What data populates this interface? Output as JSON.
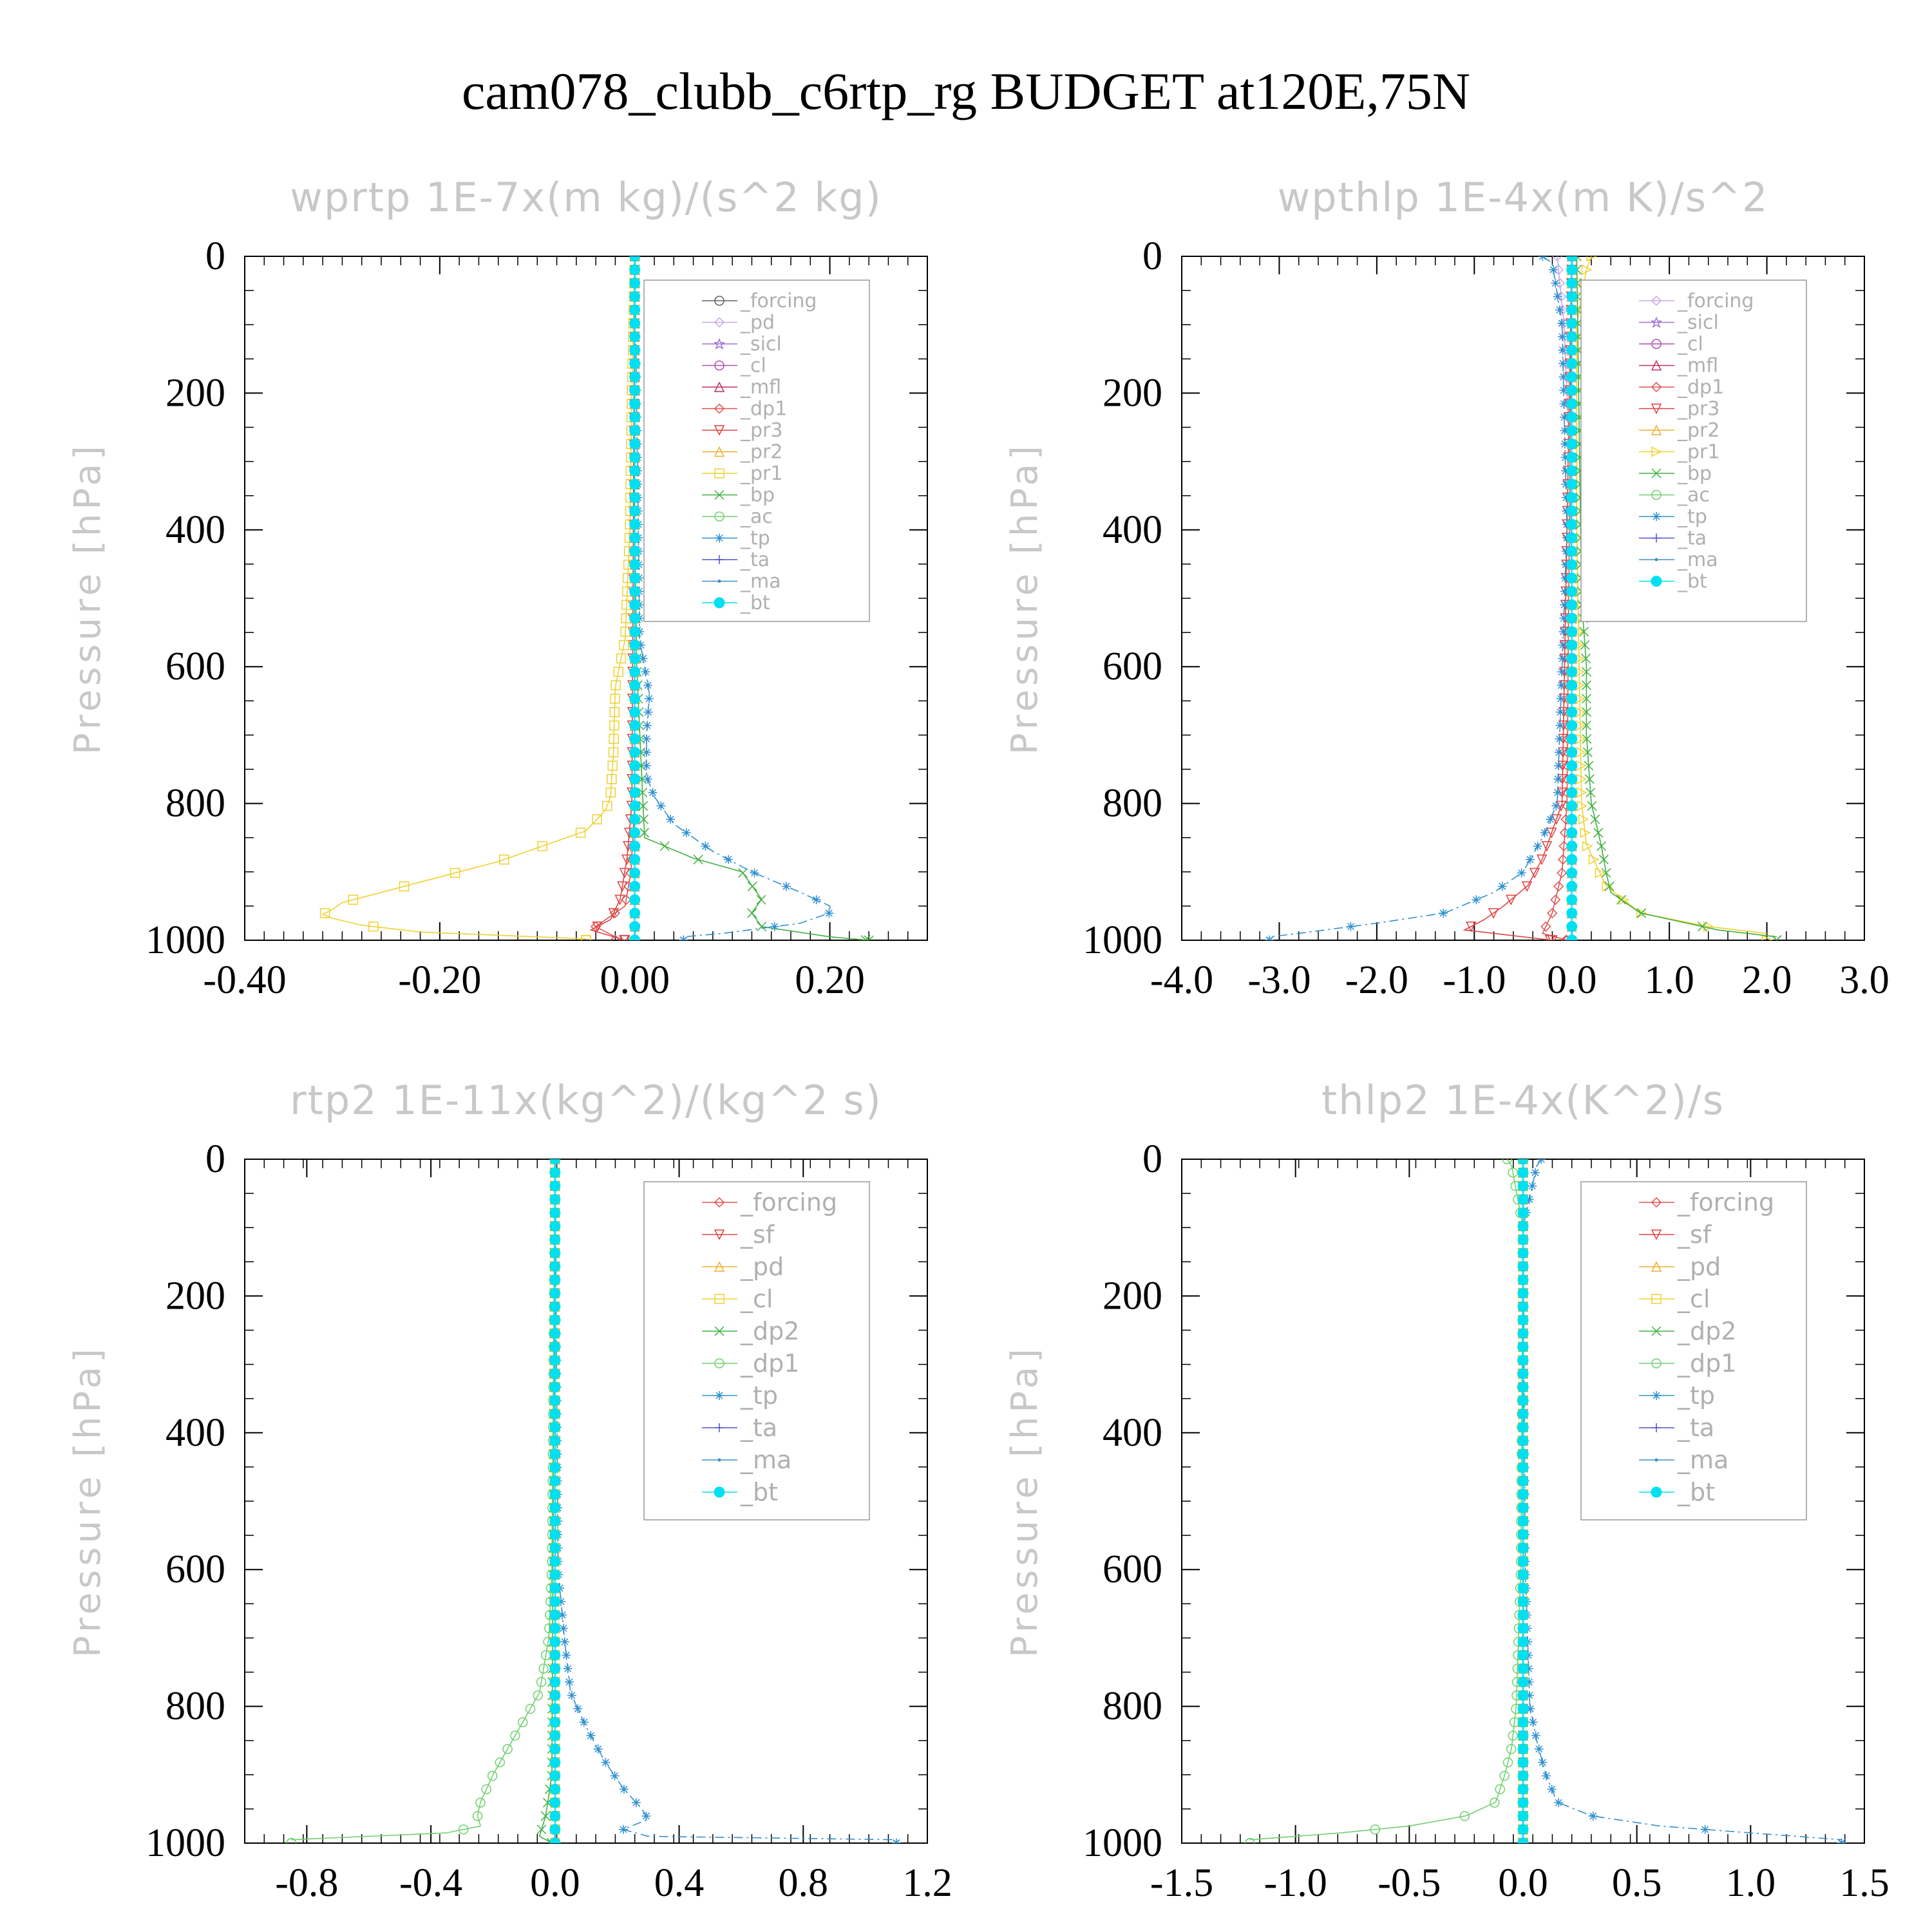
{
  "figure": {
    "title": "cam078_clubb_c6rtp_rg  BUDGET at120E,75N"
  },
  "chart_data": [
    {
      "type": "line",
      "title": "wprtp   1E-7x(m kg)/(s^2 kg)",
      "ylabel": "Pressure [hPa]",
      "xlim": [
        -0.4,
        0.3
      ],
      "ylim": [
        1000,
        0
      ],
      "xticks": [
        "-0.40",
        "-0.20",
        "0.00",
        "0.20"
      ],
      "xtick_values": [
        -0.4,
        -0.2,
        0.0,
        0.2
      ],
      "yticks": [
        "0",
        "200",
        "400",
        "600",
        "800",
        "1000"
      ],
      "legend_position": "top-right",
      "series": [
        {
          "name": "_forcing",
          "color": "#606060",
          "marker": "circle",
          "p": [
            0,
            1000
          ],
          "x": [
            0,
            0
          ]
        },
        {
          "name": "_pd",
          "color": "#c8a8e8",
          "marker": "diamond",
          "p": [
            0,
            1000
          ],
          "x": [
            0,
            0
          ]
        },
        {
          "name": "_sicl",
          "color": "#a070d0",
          "marker": "star",
          "p": [
            0,
            1000
          ],
          "x": [
            0,
            0
          ]
        },
        {
          "name": "_cl",
          "color": "#b050b0",
          "marker": "circle",
          "p": [
            0,
            1000
          ],
          "x": [
            0,
            0
          ]
        },
        {
          "name": "_mfl",
          "color": "#c03060",
          "marker": "triangle",
          "p": [
            0,
            1000
          ],
          "x": [
            0,
            0
          ]
        },
        {
          "name": "_dp1",
          "color": "#e05050",
          "marker": "diamond",
          "p": [
            0,
            800,
            900,
            950,
            980,
            995
          ],
          "x": [
            0,
            0,
            -0.004,
            -0.01,
            -0.04,
            -0.02
          ]
        },
        {
          "name": "_pr3",
          "color": "#e04040",
          "marker": "triangle-down",
          "p": [
            0,
            800,
            880,
            940,
            970,
            985,
            1000
          ],
          "x": [
            0,
            -0.003,
            -0.008,
            -0.015,
            -0.025,
            -0.045,
            -0.01
          ]
        },
        {
          "name": "_pr2",
          "color": "#f0b030",
          "marker": "triangle",
          "p": [
            0,
            1000
          ],
          "x": [
            0,
            0
          ]
        },
        {
          "name": "_pr1",
          "color": "#f0d030",
          "marker": "square",
          "p": [
            0,
            200,
            400,
            560,
            630,
            730,
            790,
            810,
            840,
            865,
            885,
            900,
            915,
            930,
            945,
            955,
            962,
            968,
            978,
            988,
            998
          ],
          "x": [
            0,
            -0.003,
            -0.005,
            -0.01,
            -0.02,
            -0.022,
            -0.025,
            -0.03,
            -0.05,
            -0.1,
            -0.14,
            -0.18,
            -0.22,
            -0.26,
            -0.3,
            -0.31,
            -0.32,
            -0.31,
            -0.28,
            -0.22,
            -0.05
          ]
        },
        {
          "name": "_bp",
          "color": "#40b040",
          "marker": "x",
          "p": [
            0,
            400,
            600,
            850,
            880,
            900,
            920,
            940,
            960,
            980,
            995,
            1000
          ],
          "x": [
            0,
            0,
            0.002,
            0.01,
            0.06,
            0.11,
            0.12,
            0.13,
            0.12,
            0.13,
            0.2,
            0.24
          ]
        },
        {
          "name": "_ac",
          "color": "#70d070",
          "marker": "circle",
          "p": [
            0,
            1000
          ],
          "x": [
            0,
            0
          ]
        },
        {
          "name": "_tp",
          "color": "#3090d0",
          "marker": "asterisk",
          "p": [
            0,
            560,
            600,
            640,
            700,
            760,
            790,
            830,
            870,
            900,
            930,
            950,
            960,
            975,
            990,
            995
          ],
          "x": [
            0,
            0.005,
            0.01,
            0.015,
            0.012,
            0.012,
            0.02,
            0.04,
            0.08,
            0.12,
            0.17,
            0.2,
            0.2,
            0.17,
            0.09,
            0.05
          ]
        },
        {
          "name": "_ta",
          "color": "#5050d0",
          "marker": "plus",
          "p": [
            0,
            1000
          ],
          "x": [
            0,
            0
          ]
        },
        {
          "name": "_ma",
          "color": "#4090c0",
          "marker": "dot",
          "p": [
            0,
            1000
          ],
          "x": [
            0,
            0
          ]
        },
        {
          "name": "_bt",
          "color": "#00e0f0",
          "marker": "filled-circle",
          "p": [
            0,
            1000
          ],
          "x": [
            0,
            0
          ]
        }
      ]
    },
    {
      "type": "line",
      "title": "wpthlp   1E-4x(m K)/s^2",
      "ylabel": "Pressure [hPa]",
      "xlim": [
        -4.0,
        3.0
      ],
      "ylim": [
        1000,
        0
      ],
      "xticks": [
        "-4.0",
        "-3.0",
        "-2.0",
        "-1.0",
        "0.0",
        "1.0",
        "2.0",
        "3.0"
      ],
      "xtick_values": [
        -4,
        -3,
        -2,
        -1,
        0,
        1,
        2,
        3
      ],
      "yticks": [
        "0",
        "200",
        "400",
        "600",
        "800",
        "1000"
      ],
      "legend_position": "top-right",
      "series": [
        {
          "name": "_forcing",
          "color": "#c8a8e8",
          "marker": "diamond",
          "p": [
            0,
            100,
            200,
            300,
            500,
            1000
          ],
          "x": [
            -0.15,
            -0.08,
            -0.05,
            -0.02,
            0,
            0
          ]
        },
        {
          "name": "_sicl",
          "color": "#a070d0",
          "marker": "star",
          "p": [
            0,
            1000
          ],
          "x": [
            0,
            0
          ]
        },
        {
          "name": "_cl",
          "color": "#b050b0",
          "marker": "circle",
          "p": [
            0,
            1000
          ],
          "x": [
            0,
            0
          ]
        },
        {
          "name": "_mfl",
          "color": "#c03060",
          "marker": "triangle",
          "p": [
            0,
            1000
          ],
          "x": [
            0,
            0
          ]
        },
        {
          "name": "_dp1",
          "color": "#e05050",
          "marker": "diamond",
          "p": [
            0,
            800,
            900,
            960,
            990,
            1000
          ],
          "x": [
            0,
            -0.05,
            -0.1,
            -0.2,
            -0.3,
            -0.05
          ]
        },
        {
          "name": "_pr3",
          "color": "#e04040",
          "marker": "triangle-down",
          "p": [
            0,
            800,
            840,
            880,
            920,
            950,
            970,
            985,
            1000
          ],
          "x": [
            0,
            -0.1,
            -0.2,
            -0.3,
            -0.45,
            -0.7,
            -0.9,
            -1.1,
            -0.2
          ]
        },
        {
          "name": "_pr2",
          "color": "#f0b030",
          "marker": "triangle",
          "p": [
            0,
            1000
          ],
          "x": [
            0,
            0
          ]
        },
        {
          "name": "_pr1",
          "color": "#f0d030",
          "marker": "triangle-right",
          "p": [
            0,
            20,
            100,
            400,
            800,
            860,
            920,
            960,
            980,
            990
          ],
          "x": [
            0.2,
            0.15,
            0.05,
            0.05,
            0.1,
            0.15,
            0.35,
            0.7,
            1.4,
            2.0
          ]
        },
        {
          "name": "_bp",
          "color": "#40b040",
          "marker": "x",
          "p": [
            0,
            500,
            600,
            700,
            800,
            860,
            900,
            930,
            960,
            985,
            995
          ],
          "x": [
            0.05,
            0.1,
            0.15,
            0.15,
            0.2,
            0.3,
            0.35,
            0.4,
            0.7,
            1.5,
            2.1
          ]
        },
        {
          "name": "_ac",
          "color": "#70d070",
          "marker": "circle",
          "p": [
            0,
            1000
          ],
          "x": [
            0,
            0
          ]
        },
        {
          "name": "_tp",
          "color": "#3090d0",
          "marker": "asterisk",
          "p": [
            0,
            10,
            100,
            400,
            800,
            850,
            900,
            930,
            960,
            975,
            990,
            995
          ],
          "x": [
            -0.3,
            -0.2,
            -0.1,
            -0.05,
            -0.15,
            -0.3,
            -0.5,
            -0.8,
            -1.3,
            -2.0,
            -2.8,
            -3.1
          ]
        },
        {
          "name": "_ta",
          "color": "#5050d0",
          "marker": "plus",
          "p": [
            0,
            1000
          ],
          "x": [
            0,
            0
          ]
        },
        {
          "name": "_ma",
          "color": "#4090c0",
          "marker": "dot",
          "p": [
            0,
            1000
          ],
          "x": [
            0,
            0
          ]
        },
        {
          "name": "_bt",
          "color": "#00e0f0",
          "marker": "filled-circle",
          "p": [
            0,
            1000
          ],
          "x": [
            0,
            0
          ]
        }
      ]
    },
    {
      "type": "line",
      "title": "rtp2   1E-11x(kg^2)/(kg^2 s)",
      "ylabel": "Pressure [hPa]",
      "xlim": [
        -1.0,
        1.2
      ],
      "ylim": [
        1000,
        0
      ],
      "xticks": [
        "-0.8",
        "-0.4",
        "0.0",
        "0.4",
        "0.8",
        "1.2"
      ],
      "xtick_values": [
        -0.8,
        -0.4,
        0.0,
        0.4,
        0.8,
        1.2
      ],
      "yticks": [
        "0",
        "200",
        "400",
        "600",
        "800",
        "1000"
      ],
      "legend_position": "top-right",
      "series": [
        {
          "name": "_forcing",
          "color": "#e05050",
          "marker": "diamond",
          "p": [
            0,
            1000
          ],
          "x": [
            0,
            0
          ]
        },
        {
          "name": "_sf",
          "color": "#e04040",
          "marker": "triangle-down",
          "p": [
            0,
            1000
          ],
          "x": [
            0,
            0
          ]
        },
        {
          "name": "_pd",
          "color": "#f0b030",
          "marker": "triangle",
          "p": [
            0,
            1000
          ],
          "x": [
            0,
            0
          ]
        },
        {
          "name": "_cl",
          "color": "#f0d030",
          "marker": "square",
          "p": [
            0,
            1000
          ],
          "x": [
            0,
            0
          ]
        },
        {
          "name": "_dp2",
          "color": "#40b040",
          "marker": "x",
          "p": [
            0,
            900,
            960,
            990,
            1000
          ],
          "x": [
            0,
            -0.01,
            -0.03,
            -0.05,
            -0.01
          ]
        },
        {
          "name": "_dp1",
          "color": "#70d070",
          "marker": "circle",
          "p": [
            0,
            600,
            700,
            780,
            820,
            860,
            900,
            940,
            960,
            975,
            985,
            995
          ],
          "x": [
            0,
            -0.01,
            -0.02,
            -0.05,
            -0.1,
            -0.15,
            -0.2,
            -0.24,
            -0.25,
            -0.24,
            -0.35,
            -0.85
          ]
        },
        {
          "name": "_tp",
          "color": "#3090d0",
          "marker": "asterisk",
          "p": [
            0,
            600,
            700,
            780,
            830,
            880,
            920,
            950,
            965,
            980,
            990,
            995
          ],
          "x": [
            0,
            0.01,
            0.03,
            0.05,
            0.1,
            0.16,
            0.22,
            0.28,
            0.3,
            0.22,
            0.3,
            1.1
          ]
        },
        {
          "name": "_ta",
          "color": "#5050d0",
          "marker": "plus",
          "p": [
            0,
            1000
          ],
          "x": [
            0,
            0
          ]
        },
        {
          "name": "_ma",
          "color": "#4090c0",
          "marker": "dot",
          "p": [
            0,
            1000
          ],
          "x": [
            0,
            0
          ]
        },
        {
          "name": "_bt",
          "color": "#00e0f0",
          "marker": "filled-circle",
          "p": [
            0,
            1000
          ],
          "x": [
            0,
            0
          ]
        }
      ]
    },
    {
      "type": "line",
      "title": "thlp2   1E-4x(K^2)/s",
      "ylabel": "Pressure [hPa]",
      "xlim": [
        -1.5,
        1.5
      ],
      "ylim": [
        1000,
        0
      ],
      "xticks": [
        "-1.5",
        "-1.0",
        "-0.5",
        "0.0",
        "0.5",
        "1.0",
        "1.5"
      ],
      "xtick_values": [
        -1.5,
        -1.0,
        -0.5,
        0.0,
        0.5,
        1.0,
        1.5
      ],
      "yticks": [
        "0",
        "200",
        "400",
        "600",
        "800",
        "1000"
      ],
      "legend_position": "top-right",
      "series": [
        {
          "name": "_forcing",
          "color": "#e05050",
          "marker": "diamond",
          "p": [
            0,
            1000
          ],
          "x": [
            0,
            0
          ]
        },
        {
          "name": "_sf",
          "color": "#e04040",
          "marker": "triangle-down",
          "p": [
            0,
            1000
          ],
          "x": [
            0,
            0
          ]
        },
        {
          "name": "_pd",
          "color": "#f0b030",
          "marker": "triangle",
          "p": [
            0,
            1000
          ],
          "x": [
            0,
            0
          ]
        },
        {
          "name": "_cl",
          "color": "#f0d030",
          "marker": "square",
          "p": [
            0,
            1000
          ],
          "x": [
            0,
            0
          ]
        },
        {
          "name": "_dp2",
          "color": "#40b040",
          "marker": "x",
          "p": [
            0,
            1000
          ],
          "x": [
            0,
            0
          ]
        },
        {
          "name": "_dp1",
          "color": "#70d070",
          "marker": "circle",
          "p": [
            0,
            10,
            100,
            600,
            800,
            860,
            900,
            940,
            960,
            975,
            985,
            995
          ],
          "x": [
            -0.07,
            -0.05,
            0,
            -0.01,
            -0.03,
            -0.05,
            -0.08,
            -0.12,
            -0.25,
            -0.5,
            -0.8,
            -1.2
          ]
        },
        {
          "name": "_tp",
          "color": "#3090d0",
          "marker": "asterisk",
          "p": [
            0,
            10,
            100,
            600,
            800,
            850,
            900,
            940,
            960,
            975,
            985,
            995
          ],
          "x": [
            0.08,
            0.06,
            0,
            0.01,
            0.03,
            0.06,
            0.1,
            0.15,
            0.3,
            0.6,
            1.0,
            1.4
          ]
        },
        {
          "name": "_ta",
          "color": "#5050d0",
          "marker": "plus",
          "p": [
            0,
            1000
          ],
          "x": [
            0,
            0
          ]
        },
        {
          "name": "_ma",
          "color": "#4090c0",
          "marker": "dot",
          "p": [
            0,
            1000
          ],
          "x": [
            0,
            0
          ]
        },
        {
          "name": "_bt",
          "color": "#00e0f0",
          "marker": "filled-circle",
          "p": [
            0,
            1000
          ],
          "x": [
            0,
            0
          ]
        }
      ]
    }
  ]
}
